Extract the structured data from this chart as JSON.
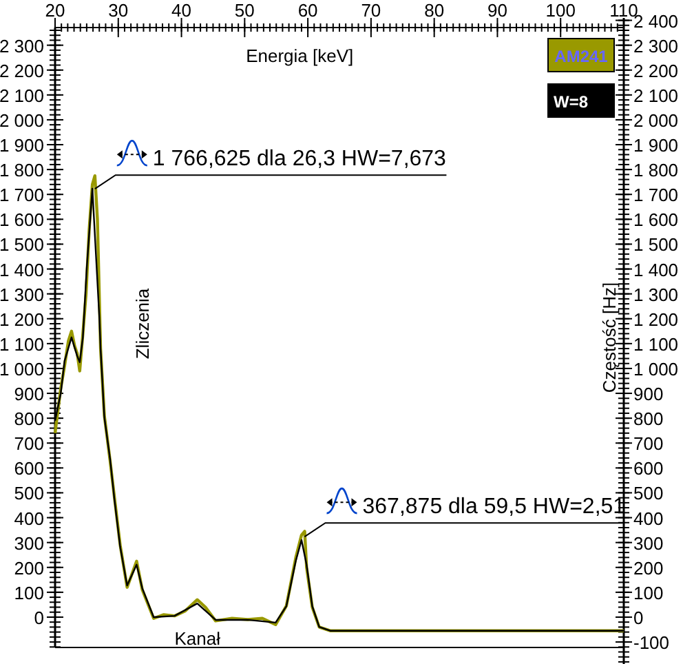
{
  "chart_data": {
    "type": "line",
    "xlabel": "Energia [keV]",
    "ylabel": "Zliczenia",
    "y2label": "Częstość [Hz]",
    "xlim": [
      20,
      110
    ],
    "xticks": [
      20,
      30,
      40,
      50,
      60,
      70,
      80,
      90,
      100,
      110
    ],
    "ylim": [
      -122,
      2371
    ],
    "yticks": [
      0,
      100,
      200,
      300,
      400,
      500,
      600,
      700,
      800,
      900,
      {
        "value": 1000,
        "label": "1 000"
      },
      {
        "value": 1100,
        "label": "1 100"
      },
      {
        "value": 1200,
        "label": "1 200"
      },
      {
        "value": 1300,
        "label": "1 300"
      },
      {
        "value": 1400,
        "label": "1 400"
      },
      {
        "value": 1500,
        "label": "1 500"
      },
      {
        "value": 1600,
        "label": "1 600"
      },
      {
        "value": 1700,
        "label": "1 700"
      },
      {
        "value": 1800,
        "label": "1 800"
      },
      {
        "value": 1900,
        "label": "1 900"
      },
      {
        "value": 2000,
        "label": "2 000"
      },
      {
        "value": 2100,
        "label": "2 100"
      },
      {
        "value": 2200,
        "label": "2 200"
      },
      {
        "value": 2300,
        "label": "2 300"
      }
    ],
    "y2lim": [
      -190,
      2410
    ],
    "y2ticks": [
      -100,
      0,
      100,
      200,
      300,
      400,
      500,
      600,
      700,
      800,
      900,
      {
        "value": 1000,
        "label": "1 000"
      },
      {
        "value": 1100,
        "label": "1 100"
      },
      {
        "value": 1200,
        "label": "1 200"
      },
      {
        "value": 1300,
        "label": "1 300"
      },
      {
        "value": 1400,
        "label": "1 400"
      },
      {
        "value": 1500,
        "label": "1 500"
      },
      {
        "value": 1600,
        "label": "1 600"
      },
      {
        "value": 1700,
        "label": "1 700"
      },
      {
        "value": 1800,
        "label": "1 800"
      },
      {
        "value": 1900,
        "label": "1 900"
      },
      {
        "value": 2000,
        "label": "2 000"
      },
      {
        "value": 2100,
        "label": "2 100"
      },
      {
        "value": 2200,
        "label": "2 200"
      },
      {
        "value": 2300,
        "label": "2 300"
      },
      {
        "value": 2400,
        "label": "2 400"
      }
    ],
    "grid": false,
    "legend": "top right",
    "marker": "none",
    "line_style": "solid",
    "series": [
      {
        "name": "AM241",
        "color": "#999900",
        "x": [
          20,
          20.9,
          21.5,
          22.1,
          22.6,
          23.1,
          23.5,
          23.9,
          24.4,
          24.9,
          25.4,
          25.9,
          26.3,
          26.7,
          27.2,
          27.8,
          28.7,
          29.4,
          30.3,
          31.4,
          32.9,
          33.8,
          35.6,
          37.2,
          38.9,
          40.6,
          42.5,
          43.8,
          45.4,
          48,
          50.5,
          52.8,
          54.9,
          56.6,
          58.1,
          59.0,
          59.5,
          59.8,
          60.7,
          61.8,
          63.6,
          110
        ],
        "values": [
          740,
          920,
          1010,
          1110,
          1150,
          1090,
          1060,
          990,
          1140,
          1300,
          1560,
          1740,
          1775,
          1600,
          1080,
          810,
          630,
          480,
          290,
          120,
          225,
          110,
          -5,
          10,
          5,
          25,
          70,
          40,
          -15,
          -5,
          -10,
          -5,
          -30,
          45,
          240,
          330,
          345,
          200,
          40,
          -40,
          -55,
          -55
        ]
      },
      {
        "name": "W=8",
        "color": "#000000",
        "x": [
          20,
          20.9,
          21.5,
          22.6,
          23.5,
          23.9,
          24.4,
          25.0,
          25.9,
          27.0,
          27.2,
          27.8,
          28.7,
          29.4,
          30.3,
          31.4,
          32.9,
          33.8,
          35.6,
          38.9,
          42.5,
          45.4,
          50.5,
          54.9,
          56.6,
          58.1,
          59.0,
          59.8,
          60.7,
          61.8,
          63.6,
          110
        ],
        "values": [
          790,
          900,
          1030,
          1125,
          1050,
          1025,
          1125,
          1400,
          1723,
          1208,
          1080,
          803,
          637,
          471,
          283,
          127,
          211,
          116,
          0,
          5,
          55,
          -11,
          -11,
          -22,
          44,
          227,
          310,
          211,
          44,
          -39,
          -55,
          -55
        ]
      }
    ],
    "annotations": [
      {
        "text": "1 766,625 dla 26,3 HW=7,673",
        "x": 26.3,
        "y": 1766.625
      },
      {
        "text": "367,875 dla 59,5 HW=2,51",
        "x": 59.5,
        "y": 367.875
      },
      "Kanał"
    ]
  }
}
